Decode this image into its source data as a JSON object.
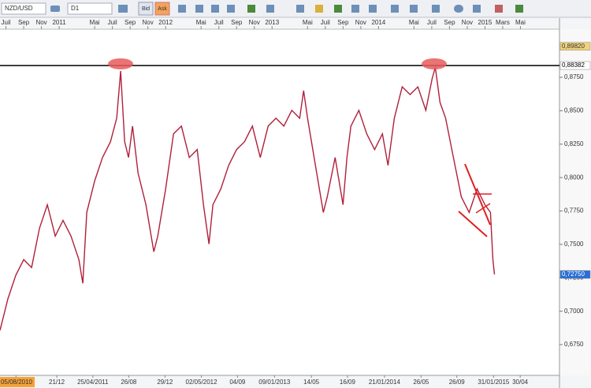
{
  "chart_data": {
    "type": "line",
    "symbol": "NZD/USD",
    "timeframe": "D1",
    "bid_label": "Bid",
    "ask_label": "Ask",
    "xlim": [
      5.33,
      68.4
    ],
    "ylim": [
      0.652,
      0.911
    ],
    "yticks": [
      {
        "value": 0.675,
        "label": "0,6750"
      },
      {
        "value": 0.7,
        "label": "0,7000"
      },
      {
        "value": 0.725,
        "label": "0,7250"
      },
      {
        "value": 0.75,
        "label": "0,7500"
      },
      {
        "value": 0.775,
        "label": "0,7750"
      },
      {
        "value": 0.8,
        "label": "0,8000"
      },
      {
        "value": 0.825,
        "label": "0,8250"
      },
      {
        "value": 0.85,
        "label": "0,8500"
      },
      {
        "value": 0.875,
        "label": "0,8750"
      }
    ],
    "price_markers": [
      {
        "value": 0.8982,
        "label": "0,89820"
      },
      {
        "value": 0.88382,
        "label": "0,88382"
      },
      {
        "value": 0.7275,
        "label": "0,72750"
      }
    ],
    "top_xticks": [
      {
        "value": 6,
        "label": "Juil"
      },
      {
        "value": 8,
        "label": "Sep"
      },
      {
        "value": 10,
        "label": "Nov"
      },
      {
        "value": 12,
        "label": "2011"
      },
      {
        "value": 16,
        "label": "Mai"
      },
      {
        "value": 18,
        "label": "Juil"
      },
      {
        "value": 20,
        "label": "Sep"
      },
      {
        "value": 22,
        "label": "Nov"
      },
      {
        "value": 24,
        "label": "2012"
      },
      {
        "value": 28,
        "label": "Mai"
      },
      {
        "value": 30,
        "label": "Juil"
      },
      {
        "value": 32,
        "label": "Sep"
      },
      {
        "value": 34,
        "label": "Nov"
      },
      {
        "value": 36,
        "label": "2013"
      },
      {
        "value": 40,
        "label": "Mai"
      },
      {
        "value": 42,
        "label": "Juil"
      },
      {
        "value": 44,
        "label": "Sep"
      },
      {
        "value": 46,
        "label": "Nov"
      },
      {
        "value": 48,
        "label": "2014"
      },
      {
        "value": 52,
        "label": "Mai"
      },
      {
        "value": 54,
        "label": "Juil"
      },
      {
        "value": 56,
        "label": "Sep"
      },
      {
        "value": 58,
        "label": "Nov"
      },
      {
        "value": 60,
        "label": "2015"
      },
      {
        "value": 62,
        "label": "Mars"
      },
      {
        "value": 64,
        "label": "Mai"
      }
    ],
    "bottom_xticks": [
      {
        "value": 7.13,
        "label": "05/08/2010"
      },
      {
        "value": 11.73,
        "label": "21/12"
      },
      {
        "value": 15.8,
        "label": "25/04/2011"
      },
      {
        "value": 19.84,
        "label": "26/08"
      },
      {
        "value": 23.93,
        "label": "29/12"
      },
      {
        "value": 28.03,
        "label": "02/05/2012"
      },
      {
        "value": 32.1,
        "label": "04/09"
      },
      {
        "value": 36.27,
        "label": "09/01/2013"
      },
      {
        "value": 40.43,
        "label": "14/05"
      },
      {
        "value": 44.5,
        "label": "16/09"
      },
      {
        "value": 48.67,
        "label": "21/01/2014"
      },
      {
        "value": 52.8,
        "label": "26/05"
      },
      {
        "value": 56.83,
        "label": "26/09"
      },
      {
        "value": 60.97,
        "label": "31/01/2015"
      },
      {
        "value": 63.97,
        "label": "30/04"
      }
    ],
    "series": [
      {
        "color": "#b0203a",
        "x": [
          5.33,
          6.22,
          7.11,
          8,
          8.89,
          9.78,
          10.67,
          11.56,
          12.44,
          13.33,
          14.22,
          14.67,
          15.11,
          16,
          16.89,
          17.78,
          18.49,
          18.93,
          19.38,
          19.82,
          20.27,
          20.89,
          21.78,
          22.67,
          23.11,
          24,
          24.89,
          25.78,
          26.67,
          27.56,
          28.27,
          28.89,
          29.33,
          30.22,
          31.11,
          32,
          32.89,
          33.78,
          34.67,
          35.56,
          36.44,
          37.33,
          38.22,
          39.11,
          39.56,
          40,
          40.89,
          41.78,
          42.22,
          43.11,
          44,
          44.44,
          44.89,
          45.78,
          46.67,
          47.56,
          48.44,
          49.07,
          49.78,
          50.67,
          51.56,
          52.44,
          53.33,
          54.04,
          54.4,
          54.93,
          55.56,
          56.44,
          57.33,
          58.22,
          59.11,
          60,
          60.62,
          60.89,
          61.07
        ],
        "values": [
          0.6857,
          0.7092,
          0.7268,
          0.7386,
          0.7327,
          0.7621,
          0.7797,
          0.7562,
          0.768,
          0.7562,
          0.7386,
          0.7209,
          0.7739,
          0.7974,
          0.815,
          0.8268,
          0.8444,
          0.8797,
          0.8268,
          0.815,
          0.8385,
          0.8033,
          0.7797,
          0.7445,
          0.7562,
          0.7915,
          0.8327,
          0.8385,
          0.815,
          0.8209,
          0.7797,
          0.7503,
          0.7797,
          0.7915,
          0.8091,
          0.8209,
          0.8268,
          0.8385,
          0.815,
          0.8385,
          0.8444,
          0.8385,
          0.8503,
          0.8444,
          0.865,
          0.8444,
          0.8091,
          0.7739,
          0.7856,
          0.815,
          0.7797,
          0.815,
          0.8385,
          0.8503,
          0.8327,
          0.8209,
          0.8327,
          0.8091,
          0.8444,
          0.8679,
          0.8621,
          0.8679,
          0.8503,
          0.8738,
          0.8826,
          0.8562,
          0.8444,
          0.815,
          0.7856,
          0.7739,
          0.7915,
          0.7797,
          0.7739,
          0.7386,
          0.7275
        ]
      }
    ]
  }
}
